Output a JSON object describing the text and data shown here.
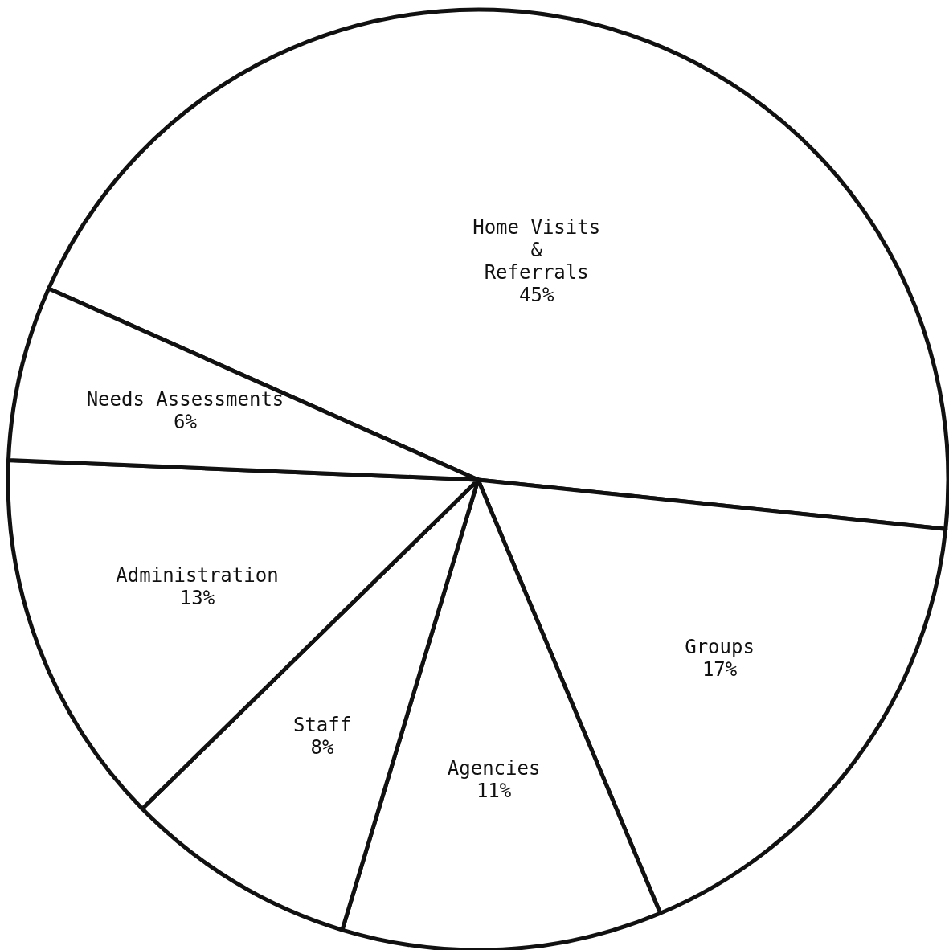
{
  "chart_data": {
    "type": "pie",
    "categories": [
      "Home Visits\n&\nReferrals",
      "Groups",
      "Agencies",
      "Staff",
      "Administration",
      "Needs Assessments"
    ],
    "values": [
      45,
      17,
      11,
      8,
      13,
      6
    ],
    "value_labels": [
      "45%",
      "17%",
      "11%",
      "8%",
      "13%",
      "6%"
    ],
    "colors": [
      "#ffffff",
      "#ffffff",
      "#ffffff",
      "#ffffff",
      "#ffffff",
      "#ffffff"
    ]
  }
}
